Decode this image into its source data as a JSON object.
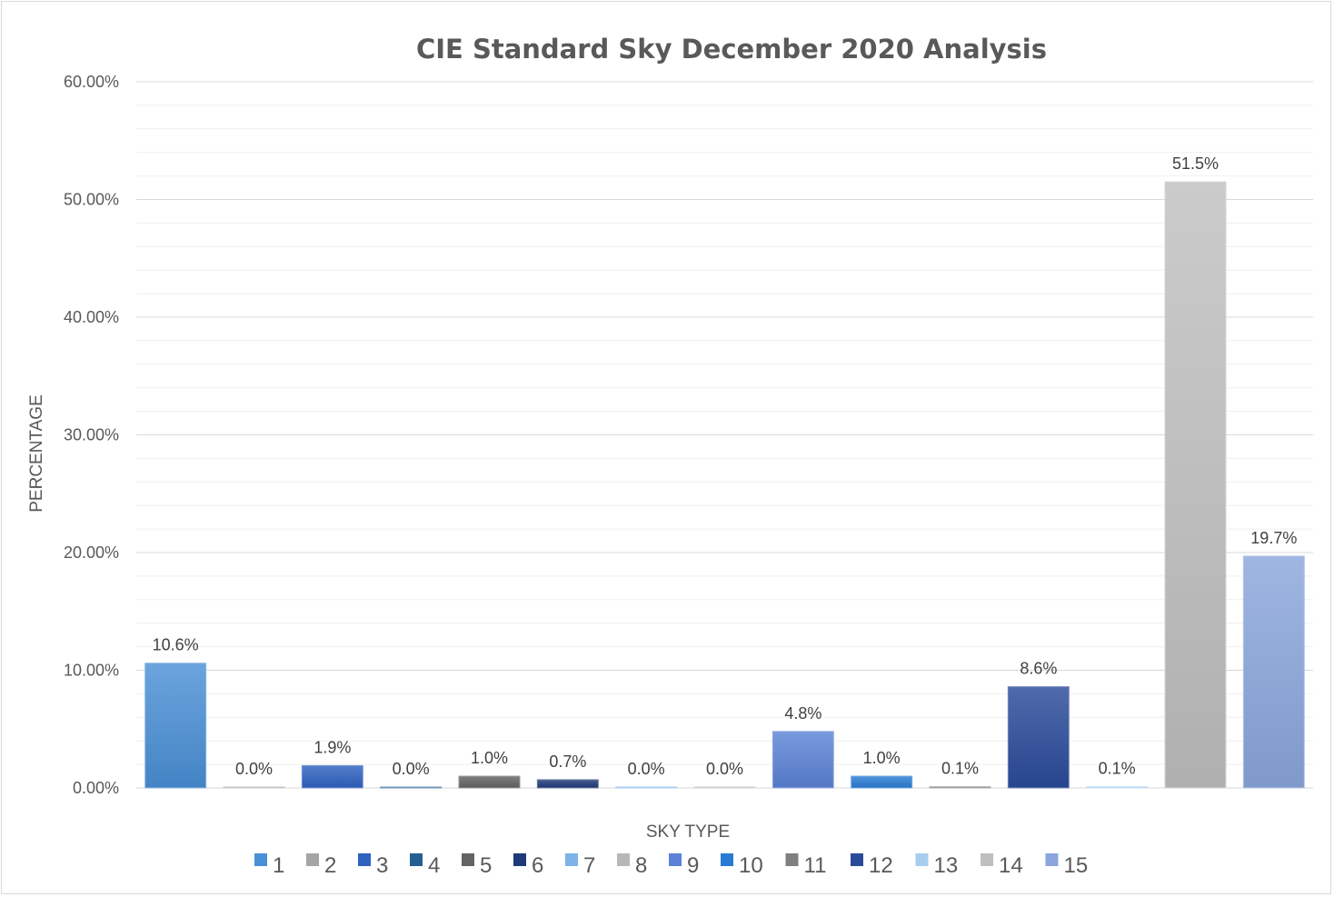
{
  "chart_data": {
    "type": "bar",
    "title": "CIE Standard Sky December 2020 Analysis",
    "xlabel": "SKY TYPE",
    "ylabel": "PERCENTAGE",
    "ylim": [
      0,
      60
    ],
    "yticks": [
      "0.00%",
      "10.00%",
      "20.00%",
      "30.00%",
      "40.00%",
      "50.00%",
      "60.00%"
    ],
    "grid": true,
    "legend_position": "bottom",
    "series": [
      {
        "name": "1",
        "value": 10.6,
        "label": "10.6%",
        "color": "#4a90d6"
      },
      {
        "name": "2",
        "value": 0.0,
        "label": "0.0%",
        "color": "#a5a5a5"
      },
      {
        "name": "3",
        "value": 1.9,
        "label": "1.9%",
        "color": "#2f62c0"
      },
      {
        "name": "4",
        "value": 0.0,
        "label": "0.0%",
        "color": "#255e91"
      },
      {
        "name": "5",
        "value": 1.0,
        "label": "1.0%",
        "color": "#636363"
      },
      {
        "name": "6",
        "value": 0.7,
        "label": "0.7%",
        "color": "#1f3a78"
      },
      {
        "name": "7",
        "value": 0.0,
        "label": "0.0%",
        "color": "#7cb4e8"
      },
      {
        "name": "8",
        "value": 0.0,
        "label": "0.0%",
        "color": "#b7b7b7"
      },
      {
        "name": "9",
        "value": 4.8,
        "label": "4.8%",
        "color": "#5b82d6"
      },
      {
        "name": "10",
        "value": 1.0,
        "label": "1.0%",
        "color": "#2a7bd4"
      },
      {
        "name": "11",
        "value": 0.1,
        "label": "0.1%",
        "color": "#7f7f7f"
      },
      {
        "name": "12",
        "value": 8.6,
        "label": "8.6%",
        "color": "#2a4b9a"
      },
      {
        "name": "13",
        "value": 0.1,
        "label": "0.1%",
        "color": "#a9cdee"
      },
      {
        "name": "14",
        "value": 51.5,
        "label": "51.5%",
        "color": "#bfbfbf"
      },
      {
        "name": "15",
        "value": 19.7,
        "label": "19.7%",
        "color": "#8aa6dc"
      }
    ]
  }
}
